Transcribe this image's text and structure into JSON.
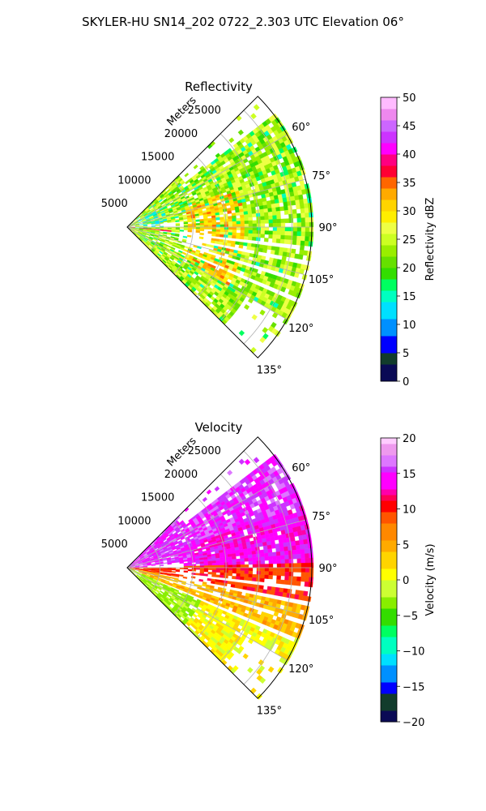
{
  "figure": {
    "title": "SKYLER-HU  SN14_202  0722_2.303 UTC Elevation 06°"
  },
  "chart_data": [
    {
      "type": "heatmap",
      "subtype": "radar-ppi-sector",
      "title": "Reflectivity",
      "range_label": "Meters",
      "range_ticks": [
        "5000",
        "10000",
        "15000",
        "20000",
        "25000"
      ],
      "range_max": 28000,
      "azimuth_range_deg": [
        45,
        135
      ],
      "azimuth_ticks": [
        "60°",
        "75°",
        "90°",
        "105°",
        "120°",
        "135°"
      ],
      "colorbar": {
        "label": "Reflectivity dBZ",
        "range": [
          0,
          50
        ],
        "ticks": [
          "0",
          "5",
          "10",
          "15",
          "20",
          "25",
          "30",
          "35",
          "40",
          "45",
          "50"
        ]
      },
      "dominant_values_dbz": [
        15,
        30
      ],
      "colors": [
        "#08086b",
        "#0030ff",
        "#00e0ff",
        "#00ffa0",
        "#33dd00",
        "#88ee00",
        "#ccff00",
        "#ffff00",
        "#ffd000",
        "#ff9900",
        "#ff0000",
        "#ff00ff",
        "#aa33ff",
        "#ffaaff"
      ]
    },
    {
      "type": "heatmap",
      "subtype": "radar-ppi-sector",
      "title": "Velocity",
      "range_label": "Meters",
      "range_ticks": [
        "5000",
        "10000",
        "15000",
        "20000",
        "25000"
      ],
      "range_max": 28000,
      "azimuth_range_deg": [
        45,
        135
      ],
      "azimuth_ticks": [
        "60°",
        "75°",
        "90°",
        "105°",
        "120°",
        "135°"
      ],
      "colorbar": {
        "label": "Velocity (m/s)",
        "range": [
          -20,
          20
        ],
        "ticks": [
          "−20",
          "−15",
          "−10",
          "−5",
          "0",
          "5",
          "10",
          "15",
          "20"
        ]
      },
      "dominant_values_ms": [
        -5,
        15
      ],
      "colors": [
        "#08086b",
        "#0030ff",
        "#00e0ff",
        "#00ffa0",
        "#33dd00",
        "#88ee00",
        "#ccff00",
        "#ffff00",
        "#ffd000",
        "#ff9900",
        "#ff0000",
        "#ff00ff",
        "#aa33ff",
        "#ffaaff"
      ]
    }
  ]
}
